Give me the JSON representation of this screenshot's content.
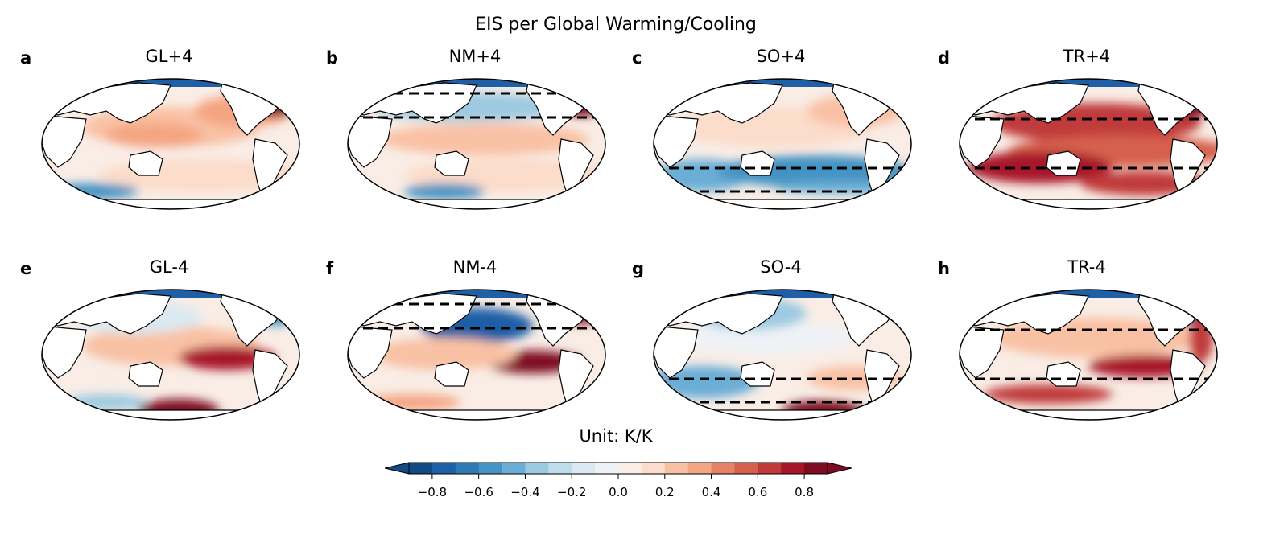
{
  "figure": {
    "title": "EIS per Global Warming/Cooling",
    "panels": [
      {
        "label": "a",
        "title": "GL+4",
        "bands": []
      },
      {
        "label": "b",
        "title": "NM+4",
        "bands": [
          "north-mid"
        ]
      },
      {
        "label": "c",
        "title": "SO+4",
        "bands": [
          "southern-ocean"
        ]
      },
      {
        "label": "d",
        "title": "TR+4",
        "bands": [
          "tropics"
        ]
      },
      {
        "label": "e",
        "title": "GL-4",
        "bands": []
      },
      {
        "label": "f",
        "title": "NM-4",
        "bands": [
          "north-mid"
        ]
      },
      {
        "label": "g",
        "title": "SO-4",
        "bands": [
          "southern-ocean"
        ]
      },
      {
        "label": "h",
        "title": "TR-4",
        "bands": [
          "tropics"
        ]
      }
    ],
    "colorbar": {
      "title": "Unit: K/K",
      "colormap": "RdBu_r",
      "range": [
        -0.9,
        0.9
      ],
      "extend": "both",
      "ticks": [
        "−0.8",
        "−0.6",
        "−0.4",
        "−0.2",
        "0.0",
        "0.2",
        "0.4",
        "0.6",
        "0.8"
      ],
      "colors": [
        "#0f4a82",
        "#1f5fa6",
        "#2f79b5",
        "#4393c3",
        "#6aaed6",
        "#9ccae1",
        "#bfdcec",
        "#dbe9f2",
        "#eef2f6",
        "#f9ede6",
        "#fcdcca",
        "#f9c1a4",
        "#f4a582",
        "#e58267",
        "#d6604d",
        "#c03a3a",
        "#a81529",
        "#7e0b22"
      ]
    }
  }
}
